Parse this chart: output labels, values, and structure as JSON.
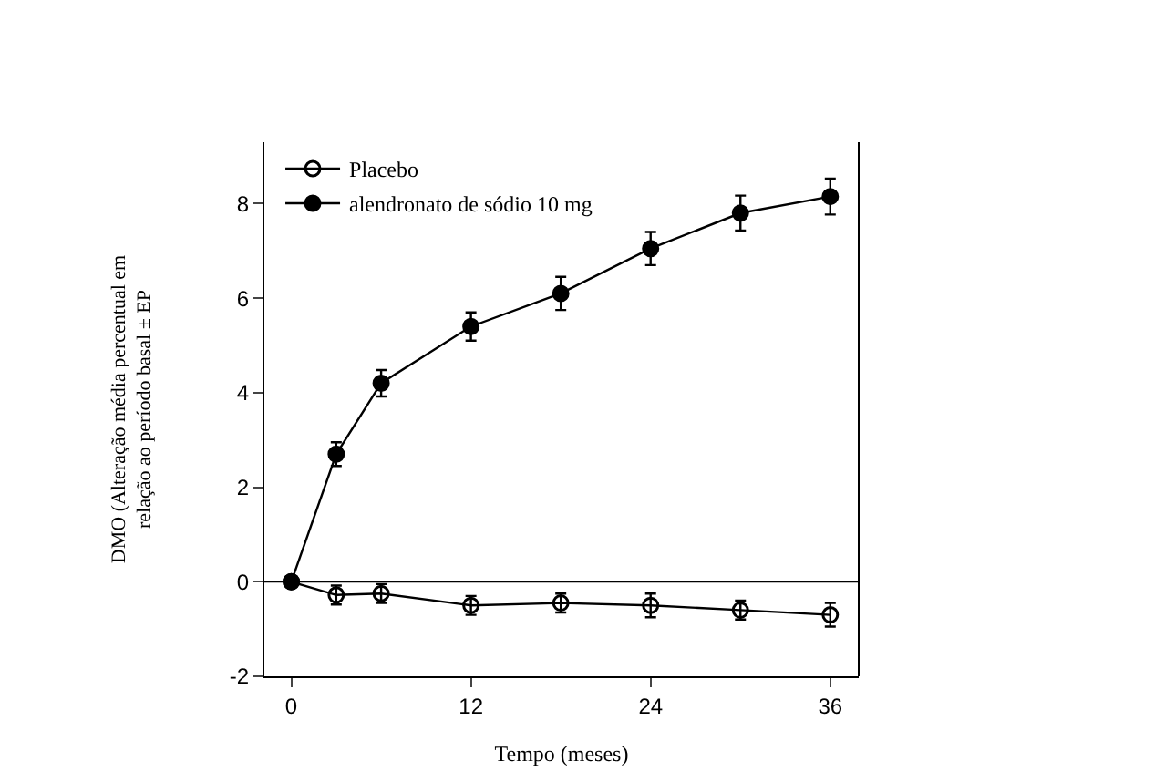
{
  "chart_data": {
    "type": "line",
    "xlabel": "Tempo (meses)",
    "ylabel": "DMO (Alteração média percentual em\nrelação ao período basal ± EP",
    "x": [
      0,
      3,
      6,
      12,
      18,
      24,
      30,
      36
    ],
    "series": [
      {
        "name": "Placebo",
        "color": "#000000",
        "marker": "open_circle",
        "values": [
          0,
          -0.28,
          -0.25,
          -0.5,
          -0.45,
          -0.5,
          -0.6,
          -0.7
        ],
        "errors": [
          null,
          0.2,
          0.2,
          0.2,
          0.2,
          0.25,
          0.2,
          0.25
        ]
      },
      {
        "name": "alendronato de sódio 10 mg",
        "color": "#000000",
        "marker": "circle",
        "values": [
          0,
          2.7,
          4.2,
          5.4,
          6.1,
          7.05,
          7.8,
          8.15
        ],
        "errors": [
          null,
          0.25,
          0.28,
          0.3,
          0.35,
          0.35,
          0.37,
          0.38
        ]
      }
    ],
    "xlim": [
      -1.8,
      37.9
    ],
    "xticks": [
      0,
      12,
      24,
      36
    ],
    "ylim": [
      -2,
      9.3
    ],
    "yticks": [
      -2,
      0,
      2,
      4,
      6,
      8
    ],
    "ref_lines": [
      {
        "axis": "y",
        "value": 0
      }
    ],
    "legend": "top left",
    "line_style": "solid"
  }
}
